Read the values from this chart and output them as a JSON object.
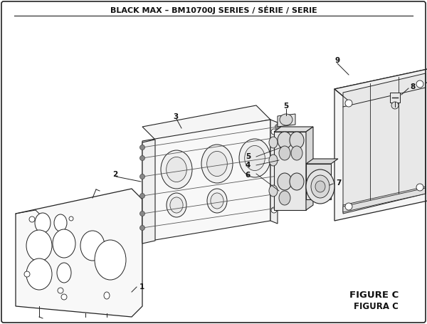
{
  "title": "BLACK MAX – BM10700J SERIES / SÉRIE / SERIE",
  "figure_label": "FIGURE C",
  "figura_label": "FIGURA C",
  "bg_color": "#ffffff",
  "lc": "#222222",
  "lc_light": "#666666",
  "lw_main": 0.8,
  "lw_thin": 0.5,
  "label_fontsize": 7.5,
  "title_fontsize": 8.0
}
